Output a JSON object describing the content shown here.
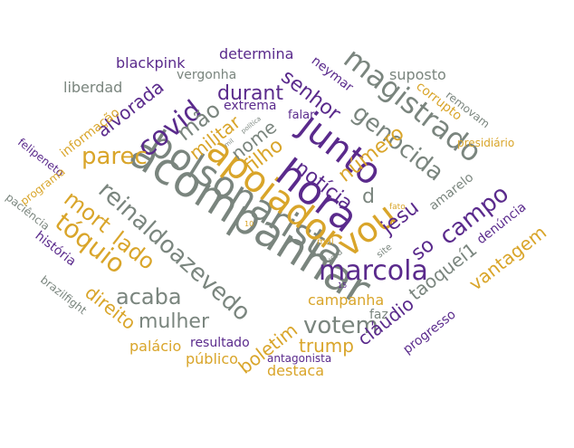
{
  "palette": {
    "gray": "#7a857e",
    "purple": "#5a2a8c",
    "gold": "#d9a52a"
  },
  "words": [
    "acompanhar",
    "bolsonarista",
    "apoiador",
    "hora",
    "junto",
    "vou",
    "marcola",
    "reinaldoazevedo",
    "magistrado",
    "genocida",
    "mort",
    "lado",
    "tóquio",
    "votem",
    "covid",
    "parec",
    "campo",
    "notícia",
    "filho",
    "senhor",
    "número",
    "jesu",
    "mão",
    "militar",
    "nome",
    "durant",
    "alvorada",
    "acaba",
    "mulher",
    "direito",
    "boletim",
    "trump",
    "cláudio",
    "taoqueí1",
    "vantagem",
    "blackpink",
    "determina",
    "vergonha",
    "liberdad",
    "extrema",
    "suposto",
    "neymar",
    "corrupto",
    "removam",
    "falar",
    "presidiário",
    "denúncia",
    "amarelo",
    "so",
    "d",
    "campanha",
    "resultado",
    "palácio",
    "público",
    "destaca",
    "antagonista",
    "progresso",
    "faz",
    "informação",
    "felipeneto",
    "programa",
    "paciência",
    "história",
    "brazilfight",
    "site",
    "mal",
    "fato",
    "verd",
    "política",
    "mil",
    "15",
    "10"
  ]
}
